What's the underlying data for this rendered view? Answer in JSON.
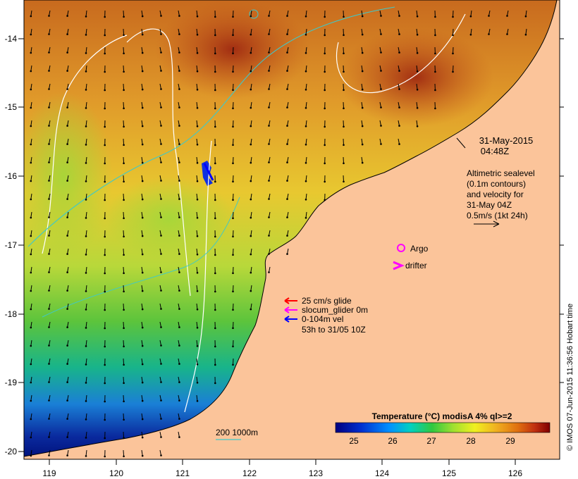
{
  "map": {
    "x_ticks": [
      "119",
      "120",
      "121",
      "122",
      "123",
      "124",
      "125",
      "126"
    ],
    "y_ticks": [
      "-14",
      "-15",
      "-16",
      "-17",
      "-18",
      "-19",
      "-20"
    ],
    "date_line1": "31-May-2015",
    "date_line2": "04:48Z",
    "altimetry_text": [
      "Altimetric sealevel",
      "(0.1m contours)",
      "and velocity for",
      "31-May 04Z",
      "0.5m/s (1kt 24h)"
    ],
    "argo_label": "Argo",
    "drifter_label": "drifter",
    "legend": {
      "glide": "25 cm/s glide",
      "slocum": "slocum_glider 0m",
      "vel": "0-104m vel",
      "period": "53h to 31/05 10Z"
    },
    "depth_legend": "200  1000m",
    "colorbar": {
      "title": "Temperature (°C) modisA 4% ql>=2",
      "ticks": [
        "25",
        "26",
        "27",
        "28",
        "29"
      ]
    },
    "credit": "© IMOS 07-Jun-2015 11:36:56 Hobart time",
    "colors": {
      "land": "#fbc49a",
      "arrow_red": "#ff0000",
      "arrow_magenta": "#ff00ff",
      "arrow_blue": "#0000ff",
      "contour_white": "#ffffff",
      "isobath": "#3ec9c9"
    }
  }
}
